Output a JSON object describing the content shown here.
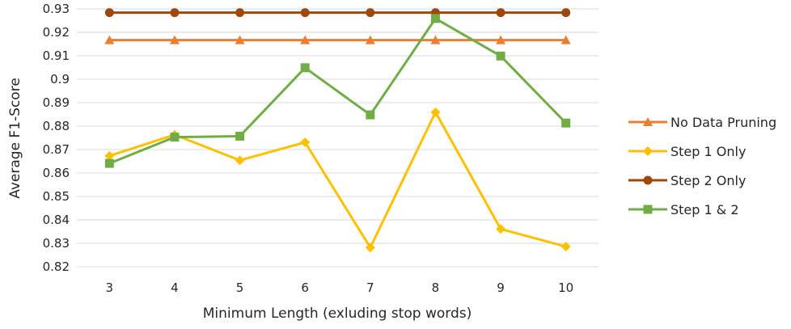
{
  "chart_data": {
    "type": "line",
    "title": "",
    "xlabel": "Minimum Length (exluding stop words)",
    "ylabel": "Average  F1-Score",
    "categories": [
      "3",
      "4",
      "5",
      "6",
      "7",
      "8",
      "9",
      "10"
    ],
    "y_ticks": [
      "0.82",
      "0.83",
      "0.84",
      "0.85",
      "0.86",
      "0.87",
      "0.88",
      "0.89",
      "0.9",
      "0.91",
      "0.92",
      "0.93"
    ],
    "ylim": [
      0.82,
      0.93
    ],
    "grid": true,
    "legend_position": "right",
    "series": [
      {
        "name": "No Data Pruning",
        "color": "#ED7D31",
        "marker": "triangle",
        "values": [
          0.9167,
          0.9167,
          0.9167,
          0.9167,
          0.9167,
          0.9167,
          0.9167,
          0.9167
        ]
      },
      {
        "name": "Step 1 Only",
        "color": "#FFC000",
        "marker": "diamond",
        "values": [
          0.8673,
          0.8763,
          0.8654,
          0.8731,
          0.8282,
          0.8859,
          0.8361,
          0.8286
        ]
      },
      {
        "name": "Step 2 Only",
        "color": "#9E480E",
        "marker": "circle",
        "values": [
          0.9284,
          0.9284,
          0.9284,
          0.9284,
          0.9284,
          0.9284,
          0.9284,
          0.9284
        ]
      },
      {
        "name": "Step 1 & 2",
        "color": "#70AD47",
        "marker": "square",
        "values": [
          0.8641,
          0.8753,
          0.8757,
          0.9049,
          0.8848,
          0.9259,
          0.9099,
          0.8813
        ]
      }
    ]
  }
}
